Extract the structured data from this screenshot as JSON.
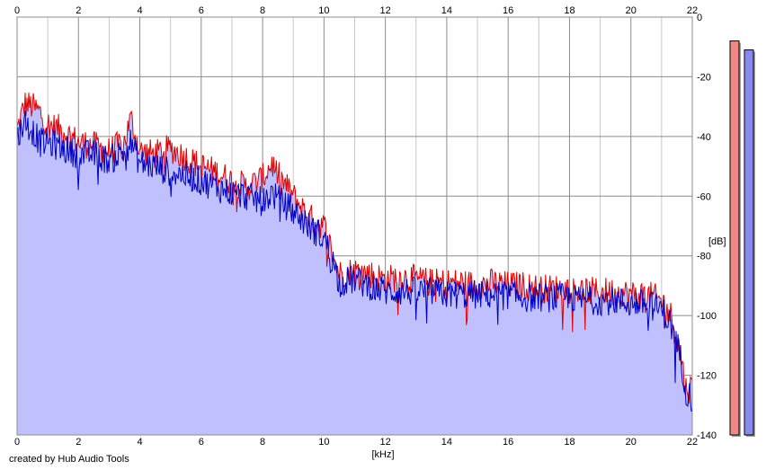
{
  "footer": {
    "credit": "created by Hub Audio Tools"
  },
  "chart_data": {
    "type": "area",
    "xlabel": "[kHz]",
    "ylabel": "[dB]",
    "xlim": [
      0,
      22
    ],
    "ylim": [
      -140,
      0
    ],
    "xticks": [
      0,
      2,
      4,
      6,
      8,
      10,
      12,
      14,
      16,
      18,
      20,
      22
    ],
    "yticks": [
      0,
      -20,
      -40,
      -60,
      -80,
      -100,
      -120,
      -140
    ],
    "grid": true,
    "colors": {
      "fill": "#c0c0ff",
      "left": "#e00000",
      "right": "#0000c0",
      "grid_major": "#8c8c8c",
      "grid_minor": "#c8c8c8",
      "meter_left": "#f08888",
      "meter_right": "#8a8aee"
    },
    "series": [
      {
        "color": "red",
        "x": [
          0,
          0.25,
          0.5,
          0.75,
          1,
          1.5,
          2,
          2.5,
          3,
          3.5,
          3.7,
          4,
          4.5,
          5,
          5.5,
          6,
          6.5,
          7,
          7.5,
          8,
          8.3,
          8.5,
          9,
          9.5,
          10,
          10.3,
          10.5,
          11,
          11.5,
          12,
          12.5,
          13,
          13.5,
          14,
          14.5,
          15,
          15.5,
          16,
          16.5,
          17,
          17.5,
          18,
          18.5,
          19,
          19.5,
          20,
          20.5,
          21,
          21.3,
          21.6,
          21.8,
          22
        ],
        "values": [
          -38,
          -29,
          -30,
          -32,
          -36,
          -38,
          -42,
          -43,
          -45,
          -42,
          -34,
          -45,
          -46,
          -44,
          -47,
          -50,
          -52,
          -55,
          -57,
          -54,
          -49,
          -53,
          -60,
          -67,
          -70,
          -80,
          -86,
          -85,
          -86,
          -88,
          -87,
          -88,
          -89,
          -89,
          -89,
          -90,
          -89,
          -90,
          -90,
          -91,
          -91,
          -91,
          -92,
          -92,
          -92,
          -93,
          -93,
          -95,
          -100,
          -112,
          -125,
          -124
        ]
      },
      {
        "color": "blue",
        "x": [
          0,
          0.25,
          0.5,
          0.75,
          1,
          1.5,
          2,
          2.5,
          3,
          3.5,
          3.7,
          4,
          4.5,
          5,
          5.5,
          6,
          6.5,
          7,
          7.5,
          8,
          8.3,
          8.5,
          9,
          9.5,
          10,
          10.3,
          10.5,
          11,
          11.5,
          12,
          12.5,
          13,
          13.5,
          14,
          14.5,
          15,
          15.5,
          16,
          16.5,
          17,
          17.5,
          18,
          18.5,
          19,
          19.5,
          20,
          20.5,
          21,
          21.3,
          21.6,
          21.8,
          22
        ],
        "values": [
          -40,
          -35,
          -38,
          -42,
          -42,
          -44,
          -46,
          -46,
          -48,
          -45,
          -42,
          -49,
          -50,
          -52,
          -53,
          -55,
          -57,
          -59,
          -60,
          -62,
          -59,
          -61,
          -65,
          -70,
          -74,
          -82,
          -89,
          -88,
          -90,
          -92,
          -92,
          -92,
          -92,
          -93,
          -93,
          -93,
          -93,
          -93,
          -94,
          -94,
          -94,
          -94,
          -95,
          -95,
          -95,
          -96,
          -96,
          -98,
          -103,
          -113,
          -125,
          -128
        ]
      }
    ],
    "level_meters": [
      {
        "channel": "left",
        "top_db": -8,
        "bottom_db": -140
      },
      {
        "channel": "right",
        "top_db": -11,
        "bottom_db": -140
      }
    ]
  }
}
